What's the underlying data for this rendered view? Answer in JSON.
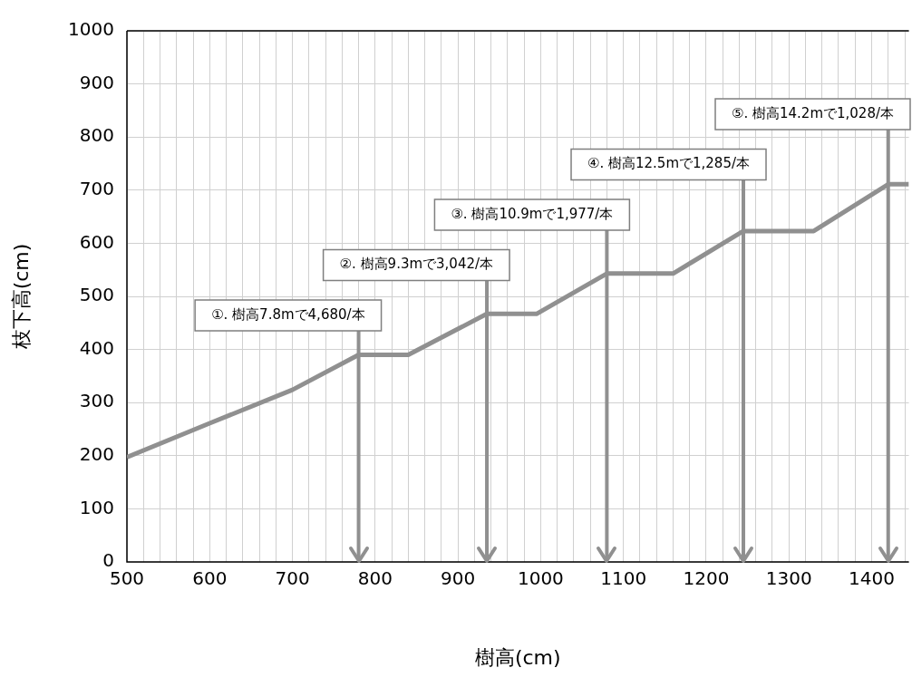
{
  "chart_data": {
    "type": "line",
    "xlabel": "樹高(cm)",
    "ylabel": "枝下高(cm)",
    "x": [
      500,
      600,
      700,
      780,
      840,
      935,
      995,
      1080,
      1160,
      1245,
      1330,
      1420,
      1445
    ],
    "series": [
      {
        "color": "#909090",
        "values": [
          197,
          261,
          324,
          390,
          390,
          467,
          467,
          543,
          543,
          623,
          623,
          711,
          711
        ]
      }
    ],
    "xlim": [
      500,
      1445
    ],
    "ylim": [
      0,
      1000
    ],
    "xticks": [
      500,
      {
        "value": 520,
        "label": null
      },
      {
        "value": 540,
        "label": null
      },
      {
        "value": 560,
        "label": null
      },
      {
        "value": 580,
        "label": null
      },
      600,
      {
        "value": 620,
        "label": null
      },
      {
        "value": 640,
        "label": null
      },
      {
        "value": 660,
        "label": null
      },
      {
        "value": 680,
        "label": null
      },
      700,
      {
        "value": 720,
        "label": null
      },
      {
        "value": 740,
        "label": null
      },
      {
        "value": 760,
        "label": null
      },
      {
        "value": 780,
        "label": null
      },
      800,
      {
        "value": 820,
        "label": null
      },
      {
        "value": 840,
        "label": null
      },
      {
        "value": 860,
        "label": null
      },
      {
        "value": 880,
        "label": null
      },
      900,
      {
        "value": 920,
        "label": null
      },
      {
        "value": 940,
        "label": null
      },
      {
        "value": 960,
        "label": null
      },
      {
        "value": 980,
        "label": null
      },
      1000,
      {
        "value": 1020,
        "label": null
      },
      {
        "value": 1040,
        "label": null
      },
      {
        "value": 1060,
        "label": null
      },
      {
        "value": 1080,
        "label": null
      },
      1100,
      {
        "value": 1120,
        "label": null
      },
      {
        "value": 1140,
        "label": null
      },
      {
        "value": 1160,
        "label": null
      },
      {
        "value": 1180,
        "label": null
      },
      1200,
      {
        "value": 1220,
        "label": null
      },
      {
        "value": 1240,
        "label": null
      },
      {
        "value": 1260,
        "label": null
      },
      {
        "value": 1280,
        "label": null
      },
      1300,
      {
        "value": 1320,
        "label": null
      },
      {
        "value": 1340,
        "label": null
      },
      {
        "value": 1360,
        "label": null
      },
      {
        "value": 1380,
        "label": null
      },
      1400,
      {
        "value": 1420,
        "label": null
      },
      {
        "value": 1440,
        "label": null
      }
    ],
    "yticks": [
      0,
      100,
      200,
      300,
      400,
      500,
      600,
      700,
      800,
      900,
      1000
    ],
    "grid": true,
    "legend": false,
    "marker": "none",
    "line_style": "solid",
    "ref_lines": [
      {
        "axis": "x",
        "value": 780,
        "label": "①. 樹高7.8mで4,680/本",
        "color": "#909090"
      },
      {
        "axis": "x",
        "value": 935,
        "label": "②. 樹高9.3mで3,042/本",
        "color": "#909090"
      },
      {
        "axis": "x",
        "value": 1080,
        "label": "③. 樹高10.9mで1,977/本",
        "color": "#909090"
      },
      {
        "axis": "x",
        "value": 1245,
        "label": "④. 樹高12.5mで1,285/本",
        "color": "#909090"
      },
      {
        "axis": "x",
        "value": 1420,
        "label": "⑤. 樹高14.2mで1,028/本",
        "color": "#909090"
      }
    ]
  }
}
